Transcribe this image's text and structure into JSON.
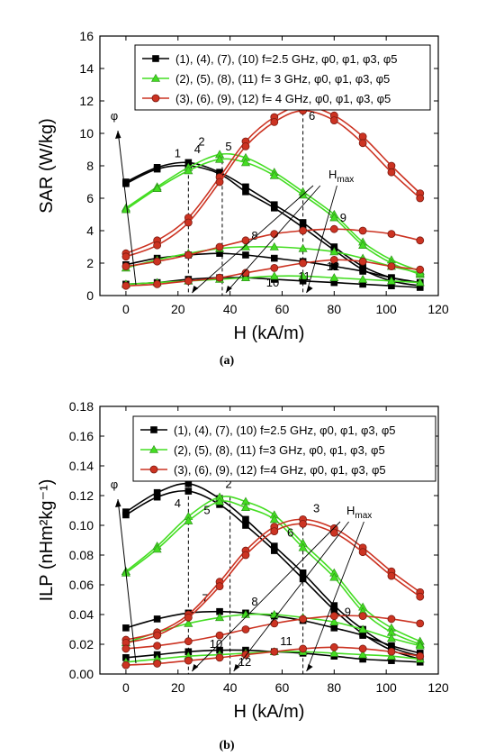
{
  "chart_data": [
    {
      "type": "line",
      "panel": "(a)",
      "ylabel": "SAR (W/kg)",
      "xlabel": "H (kA/m)",
      "xlim": [
        -10,
        120
      ],
      "ylim": [
        0,
        16
      ],
      "xticks": [
        0,
        20,
        40,
        60,
        80,
        100,
        120
      ],
      "yticks": [
        0,
        2,
        4,
        6,
        8,
        10,
        12,
        14,
        16
      ],
      "grid": false,
      "legend_position": "top-right",
      "legend": [
        {
          "label": "(1), (4), (7), (10) f=2.5 GHz, φ0, φ1, φ3, φ5",
          "marker": "square",
          "color": "#000000"
        },
        {
          "label": "(2), (5), (8), (11) f= 3 GHz, φ0, φ1, φ3, φ5",
          "marker": "triangle",
          "color": "#44dd22"
        },
        {
          "label": "(3), (6), (9), (12) f= 4 GHz, φ0, φ1, φ3, φ5",
          "marker": "circle",
          "color": "#cc3322"
        }
      ],
      "x": [
        0,
        12,
        24,
        36,
        46,
        57,
        68,
        80,
        91,
        102,
        113
      ],
      "series": [
        {
          "label": "1",
          "group": 0,
          "values": [
            7.0,
            7.9,
            8.2,
            7.6,
            6.7,
            5.6,
            4.5,
            3.0,
            1.8,
            1.1,
            0.8
          ]
        },
        {
          "label": "4",
          "group": 0,
          "values": [
            6.9,
            7.8,
            8.0,
            7.5,
            6.4,
            5.4,
            4.2,
            2.8,
            1.6,
            0.9,
            0.6
          ]
        },
        {
          "label": "7",
          "group": 0,
          "values": [
            1.9,
            2.3,
            2.5,
            2.6,
            2.5,
            2.3,
            2.1,
            1.8,
            1.5,
            1.1,
            0.8
          ]
        },
        {
          "label": "10",
          "group": 0,
          "values": [
            0.7,
            0.8,
            1.0,
            1.1,
            1.1,
            1.0,
            0.9,
            0.8,
            0.7,
            0.6,
            0.5
          ]
        },
        {
          "label": "2",
          "group": 1,
          "values": [
            5.4,
            6.7,
            7.9,
            8.7,
            8.5,
            7.6,
            6.4,
            5.0,
            3.3,
            2.2,
            1.5
          ]
        },
        {
          "label": "5",
          "group": 1,
          "values": [
            5.3,
            6.6,
            7.7,
            8.4,
            8.2,
            7.4,
            6.2,
            4.8,
            3.1,
            2.0,
            1.3
          ]
        },
        {
          "label": "8",
          "group": 1,
          "values": [
            1.7,
            2.2,
            2.6,
            2.9,
            3.0,
            3.0,
            2.9,
            2.7,
            2.3,
            1.8,
            1.4
          ]
        },
        {
          "label": "11",
          "group": 1,
          "values": [
            0.7,
            0.8,
            0.9,
            1.0,
            1.1,
            1.2,
            1.2,
            1.1,
            1.0,
            0.9,
            0.8
          ]
        },
        {
          "label": "3",
          "group": 2,
          "values": [
            2.6,
            3.4,
            4.8,
            7.3,
            9.5,
            11.0,
            11.7,
            11.1,
            9.8,
            8.0,
            6.3
          ]
        },
        {
          "label": "6",
          "group": 2,
          "values": [
            2.4,
            3.1,
            4.5,
            7.0,
            9.2,
            10.7,
            11.4,
            10.8,
            9.4,
            7.6,
            6.0
          ]
        },
        {
          "label": "9",
          "group": 2,
          "values": [
            1.8,
            2.1,
            2.5,
            3.0,
            3.4,
            3.8,
            4.0,
            4.1,
            4.0,
            3.8,
            3.4
          ]
        },
        {
          "label": "12",
          "group": 2,
          "values": [
            0.6,
            0.7,
            0.9,
            1.1,
            1.4,
            1.7,
            2.0,
            2.2,
            2.1,
            1.8,
            1.6
          ]
        }
      ],
      "guides": [
        {
          "x": 24,
          "y": 8.2
        },
        {
          "x": 37,
          "y": 8.7
        },
        {
          "x": 68,
          "y": 11.7
        }
      ],
      "annotations": {
        "phi": "φ",
        "hmax": "H",
        "hmax_sub": "max"
      }
    },
    {
      "type": "line",
      "panel": "(b)",
      "ylabel": "ILP (nHm²kg⁻¹)",
      "xlabel": "H (kA/m)",
      "xlim": [
        -10,
        120
      ],
      "ylim": [
        0,
        0.18
      ],
      "xticks": [
        0,
        20,
        40,
        60,
        80,
        100,
        120
      ],
      "yticks": [
        0.0,
        0.02,
        0.04,
        0.06,
        0.08,
        0.1,
        0.12,
        0.14,
        0.16,
        0.18
      ],
      "grid": false,
      "legend_position": "top-right",
      "legend": [
        {
          "label": "(1), (4), (7), (10) f=2.5 GHz, φ0, φ1, φ3, φ5",
          "marker": "square",
          "color": "#000000"
        },
        {
          "label": "(2), (5), (8), (11) f=3 GHz, φ0, φ1, φ3, φ5",
          "marker": "triangle",
          "color": "#44dd22"
        },
        {
          "label": "(3), (6), (9), (12) f=4 GHz, φ0, φ1, φ3, φ5",
          "marker": "circle",
          "color": "#cc3322"
        }
      ],
      "x": [
        0,
        12,
        24,
        36,
        46,
        57,
        68,
        80,
        91,
        102,
        113
      ],
      "series": [
        {
          "label": "1",
          "group": 0,
          "values": [
            0.109,
            0.122,
            0.128,
            0.118,
            0.104,
            0.086,
            0.068,
            0.046,
            0.03,
            0.018,
            0.012
          ]
        },
        {
          "label": "4",
          "group": 0,
          "values": [
            0.107,
            0.119,
            0.123,
            0.114,
            0.1,
            0.083,
            0.064,
            0.043,
            0.027,
            0.016,
            0.01
          ]
        },
        {
          "label": "7",
          "group": 0,
          "values": [
            0.031,
            0.037,
            0.041,
            0.042,
            0.041,
            0.039,
            0.036,
            0.031,
            0.026,
            0.019,
            0.014
          ]
        },
        {
          "label": "10",
          "group": 0,
          "values": [
            0.011,
            0.013,
            0.015,
            0.016,
            0.016,
            0.015,
            0.014,
            0.012,
            0.01,
            0.009,
            0.008
          ]
        },
        {
          "label": "2",
          "group": 1,
          "values": [
            0.069,
            0.086,
            0.106,
            0.119,
            0.116,
            0.107,
            0.088,
            0.068,
            0.045,
            0.031,
            0.022
          ]
        },
        {
          "label": "5",
          "group": 1,
          "values": [
            0.068,
            0.084,
            0.103,
            0.116,
            0.112,
            0.104,
            0.085,
            0.065,
            0.042,
            0.028,
            0.02
          ]
        },
        {
          "label": "8",
          "group": 1,
          "values": [
            0.021,
            0.028,
            0.034,
            0.038,
            0.04,
            0.04,
            0.038,
            0.035,
            0.03,
            0.024,
            0.019
          ]
        },
        {
          "label": "11",
          "group": 1,
          "values": [
            0.008,
            0.01,
            0.012,
            0.013,
            0.014,
            0.015,
            0.015,
            0.014,
            0.013,
            0.012,
            0.01
          ]
        },
        {
          "label": "3",
          "group": 2,
          "values": [
            0.023,
            0.028,
            0.04,
            0.062,
            0.083,
            0.099,
            0.104,
            0.098,
            0.085,
            0.069,
            0.055
          ]
        },
        {
          "label": "6",
          "group": 2,
          "values": [
            0.021,
            0.026,
            0.038,
            0.059,
            0.08,
            0.096,
            0.101,
            0.095,
            0.082,
            0.066,
            0.052
          ]
        },
        {
          "label": "9",
          "group": 2,
          "values": [
            0.017,
            0.019,
            0.022,
            0.026,
            0.03,
            0.034,
            0.037,
            0.039,
            0.039,
            0.037,
            0.034
          ]
        },
        {
          "label": "12",
          "group": 2,
          "values": [
            0.006,
            0.007,
            0.009,
            0.011,
            0.013,
            0.015,
            0.017,
            0.018,
            0.017,
            0.015,
            0.012
          ]
        }
      ],
      "guides": [
        {
          "x": 24,
          "y": 0.128
        },
        {
          "x": 40,
          "y": 0.119
        },
        {
          "x": 68,
          "y": 0.104
        }
      ],
      "annotations": {
        "phi": "φ",
        "hmax": "H",
        "hmax_sub": "max"
      }
    }
  ],
  "captions": [
    "(a)",
    "(b)"
  ]
}
